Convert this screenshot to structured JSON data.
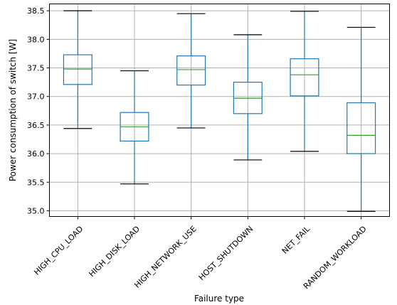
{
  "chart_data": {
    "type": "box",
    "title": "",
    "xlabel": "Failure type",
    "ylabel": "Power consumption of switch [W]",
    "ylim": [
      34.9,
      38.62
    ],
    "yticks": [
      "35.0",
      "35.5",
      "36.0",
      "36.5",
      "37.0",
      "37.5",
      "38.0",
      "38.5"
    ],
    "grid": true,
    "categories": [
      "HIGH_CPU_LOAD",
      "HIGH_DISK_LOAD",
      "HIGH_NETWORK_USE",
      "HOST_SHUTDOWN",
      "NET_FAIL",
      "RANDOM_WORKLOAD"
    ],
    "boxes": [
      {
        "whisker_low": 36.44,
        "q1": 37.21,
        "median": 37.48,
        "q3": 37.73,
        "whisker_high": 38.5
      },
      {
        "whisker_low": 35.47,
        "q1": 36.22,
        "median": 36.47,
        "q3": 36.72,
        "whisker_high": 37.45
      },
      {
        "whisker_low": 36.45,
        "q1": 37.2,
        "median": 37.47,
        "q3": 37.71,
        "whisker_high": 38.45
      },
      {
        "whisker_low": 35.89,
        "q1": 36.7,
        "median": 36.97,
        "q3": 37.25,
        "whisker_high": 38.08
      },
      {
        "whisker_low": 36.04,
        "q1": 37.01,
        "median": 37.38,
        "q3": 37.66,
        "whisker_high": 38.49
      },
      {
        "whisker_low": 34.99,
        "q1": 36.0,
        "median": 36.32,
        "q3": 36.89,
        "whisker_high": 38.21
      }
    ],
    "colors": {
      "box": "#1f77b4",
      "median": "#2ca02c",
      "caps": "#000000",
      "grid": "#b0b0b0"
    }
  }
}
